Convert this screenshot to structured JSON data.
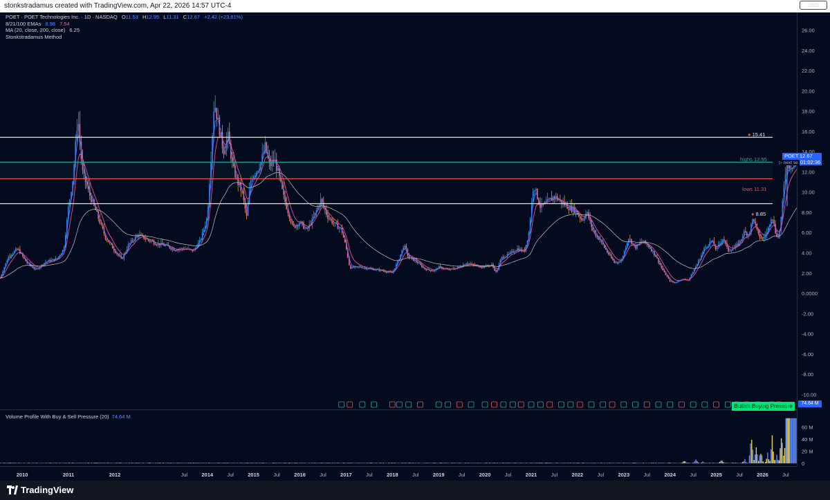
{
  "credit": "stonkstradamus created with TradingView.com, Apr 22, 2026 14:57 UTC-4",
  "legend": {
    "symbol_line": "POET · POET Technologies Inc. · 1D · NASDAQ",
    "o_label": "O",
    "o": "11.53",
    "h_label": "H",
    "h": "12.95",
    "l_label": "L",
    "l": "11.31",
    "c_label": "C",
    "c": "12.67",
    "change": "+2.42 (+23.61%)",
    "ema_label": "8/21/100 EMAs",
    "ema_v1": "8.98",
    "ema_v2": "7.54",
    "ma_label": "MA (20, close, 200, close)",
    "ma_value": "6.25",
    "method": "Stonkstradamus Method"
  },
  "volume_legend": {
    "label": "Volume Profile With Buy & Sell Pressure (20)",
    "value": "74.64 M"
  },
  "currency": "USD",
  "price_tag": {
    "symbol": "POET",
    "price": "12.67",
    "timer": "01:02:36",
    "next_label": "▷ next se"
  },
  "bullish_badge": "Bullish Buying Pressure",
  "vol_max_tag": "74.64 M",
  "level_labels": {
    "top": "15.41",
    "highs_label": "highs",
    "highs_value": "12.95",
    "lows_label": "lows",
    "lows_value": "11.31",
    "white2": "8.85"
  },
  "brand": "TradingView",
  "colors": {
    "background": "#050b1e",
    "highs_line": "#26a69a",
    "lows_line": "#ef5350",
    "level_line": "#e0e3eb",
    "price_tag": "#2962ff",
    "bullish": "#00e676",
    "ema_fast": "#3d7bff",
    "ema_mid": "#ef4f8a",
    "ma_slow": "#c7c7c7"
  },
  "chart_data": {
    "type": "candlestick",
    "symbol": "POET",
    "price_scale": [
      "26.00",
      "24.00",
      "22.00",
      "20.00",
      "18.00",
      "16.00",
      "14.00",
      "12.00",
      "10.00",
      "8.00",
      "6.00",
      "4.00",
      "2.00",
      "0.0000",
      "-2.00",
      "-4.00",
      "-6.00",
      "-8.00",
      "-10.00"
    ],
    "price_range": [
      -11,
      27.2
    ],
    "volume_scale": [
      "60 M",
      "40 M",
      "20 M",
      "0"
    ],
    "volume_range": [
      0,
      80
    ],
    "time_labels": [
      "2010",
      "2011",
      "2012",
      "Jul",
      "2014",
      "Jul",
      "2015",
      "Jul",
      "2016",
      "Jul",
      "2017",
      "Jul",
      "2018",
      "Jul",
      "2019",
      "Jul",
      "2020",
      "Jul",
      "2021",
      "Jul",
      "2022",
      "Jul",
      "2023",
      "Jul",
      "2024",
      "Jul",
      "2025",
      "Jul",
      "2026",
      "Jul"
    ],
    "time_label_dates": [
      2010.0,
      2011.0,
      2012.0,
      2013.5,
      2014.0,
      2014.5,
      2015.0,
      2015.5,
      2016.0,
      2016.5,
      2017.0,
      2017.5,
      2018.0,
      2018.5,
      2019.0,
      2019.5,
      2020.0,
      2020.5,
      2021.0,
      2021.5,
      2022.0,
      2022.5,
      2023.0,
      2023.5,
      2024.0,
      2024.5,
      2025.0,
      2025.5,
      2026.0,
      2026.5
    ],
    "time_range": [
      2009.52,
      2026.74
    ],
    "levels": [
      {
        "name": "top",
        "value": 15.41,
        "color": "#e0e3eb"
      },
      {
        "name": "highs",
        "value": 12.95,
        "color": "#26a69a"
      },
      {
        "name": "lows",
        "value": 11.31,
        "color": "#ef5350"
      },
      {
        "name": "level",
        "value": 8.85,
        "color": "#e0e3eb"
      }
    ],
    "price_path": [
      [
        2009.52,
        1.5
      ],
      [
        2009.7,
        3.6
      ],
      [
        2009.9,
        4.4
      ],
      [
        2010.1,
        3.0
      ],
      [
        2010.3,
        2.3
      ],
      [
        2010.5,
        3.1
      ],
      [
        2010.75,
        3.4
      ],
      [
        2010.9,
        4.4
      ],
      [
        2011.0,
        8.5
      ],
      [
        2011.1,
        11.5
      ],
      [
        2011.2,
        17.5
      ],
      [
        2011.3,
        12.0
      ],
      [
        2011.45,
        9.8
      ],
      [
        2011.6,
        8.0
      ],
      [
        2011.8,
        5.5
      ],
      [
        2012.0,
        4.2
      ],
      [
        2012.15,
        3.3
      ],
      [
        2012.3,
        4.8
      ],
      [
        2012.5,
        5.8
      ],
      [
        2012.7,
        5.3
      ],
      [
        2012.9,
        4.9
      ],
      [
        2013.1,
        4.7
      ],
      [
        2013.3,
        4.3
      ],
      [
        2013.5,
        4.4
      ],
      [
        2013.7,
        4.2
      ],
      [
        2013.85,
        5.2
      ],
      [
        2014.0,
        7.5
      ],
      [
        2014.08,
        13.5
      ],
      [
        2014.15,
        19.0
      ],
      [
        2014.25,
        16.5
      ],
      [
        2014.35,
        14.0
      ],
      [
        2014.45,
        15.5
      ],
      [
        2014.55,
        12.5
      ],
      [
        2014.65,
        11.0
      ],
      [
        2014.75,
        10.0
      ],
      [
        2014.85,
        7.5
      ],
      [
        2014.95,
        11.5
      ],
      [
        2015.05,
        12.0
      ],
      [
        2015.15,
        12.8
      ],
      [
        2015.25,
        14.5
      ],
      [
        2015.35,
        12.5
      ],
      [
        2015.45,
        13.3
      ],
      [
        2015.55,
        11.5
      ],
      [
        2015.65,
        9.5
      ],
      [
        2015.75,
        8.0
      ],
      [
        2015.85,
        6.5
      ],
      [
        2016.0,
        7.0
      ],
      [
        2016.15,
        6.2
      ],
      [
        2016.3,
        7.5
      ],
      [
        2016.45,
        9.2
      ],
      [
        2016.6,
        7.6
      ],
      [
        2016.75,
        6.8
      ],
      [
        2016.9,
        6.3
      ],
      [
        2017.0,
        4.5
      ],
      [
        2017.08,
        2.5
      ],
      [
        2017.3,
        2.6
      ],
      [
        2017.5,
        2.4
      ],
      [
        2017.7,
        2.3
      ],
      [
        2017.9,
        2.1
      ],
      [
        2018.0,
        2.0
      ],
      [
        2018.15,
        3.5
      ],
      [
        2018.25,
        4.8
      ],
      [
        2018.35,
        3.5
      ],
      [
        2018.5,
        3.2
      ],
      [
        2018.7,
        2.4
      ],
      [
        2018.9,
        2.2
      ],
      [
        2019.0,
        2.6
      ],
      [
        2019.2,
        2.3
      ],
      [
        2019.4,
        2.5
      ],
      [
        2019.6,
        3.0
      ],
      [
        2019.8,
        2.7
      ],
      [
        2019.95,
        2.6
      ],
      [
        2020.15,
        2.8
      ],
      [
        2020.25,
        2.0
      ],
      [
        2020.35,
        3.5
      ],
      [
        2020.5,
        3.8
      ],
      [
        2020.7,
        4.4
      ],
      [
        2020.85,
        4.1
      ],
      [
        2020.95,
        6.0
      ],
      [
        2021.05,
        10.8
      ],
      [
        2021.2,
        8.5
      ],
      [
        2021.35,
        9.0
      ],
      [
        2021.5,
        9.6
      ],
      [
        2021.65,
        9.0
      ],
      [
        2021.8,
        8.5
      ],
      [
        2021.95,
        8.2
      ],
      [
        2022.1,
        7.2
      ],
      [
        2022.2,
        8.0
      ],
      [
        2022.35,
        6.0
      ],
      [
        2022.5,
        5.2
      ],
      [
        2022.65,
        4.0
      ],
      [
        2022.8,
        3.0
      ],
      [
        2022.95,
        3.2
      ],
      [
        2023.1,
        5.5
      ],
      [
        2023.25,
        4.5
      ],
      [
        2023.4,
        5.2
      ],
      [
        2023.55,
        4.6
      ],
      [
        2023.7,
        3.6
      ],
      [
        2023.85,
        2.2
      ],
      [
        2024.0,
        1.2
      ],
      [
        2024.1,
        1.0
      ],
      [
        2024.25,
        1.4
      ],
      [
        2024.4,
        1.3
      ],
      [
        2024.55,
        2.6
      ],
      [
        2024.65,
        3.5
      ],
      [
        2024.75,
        4.5
      ],
      [
        2024.9,
        5.2
      ],
      [
        2025.0,
        4.3
      ],
      [
        2025.15,
        5.5
      ],
      [
        2025.25,
        4.2
      ],
      [
        2025.4,
        4.5
      ],
      [
        2025.5,
        5.0
      ],
      [
        2025.6,
        6.0
      ],
      [
        2025.7,
        5.8
      ],
      [
        2025.8,
        7.5
      ],
      [
        2025.9,
        5.8
      ],
      [
        2026.0,
        5.3
      ],
      [
        2026.1,
        6.0
      ],
      [
        2026.2,
        7.8
      ],
      [
        2026.28,
        6.0
      ],
      [
        2026.35,
        5.4
      ],
      [
        2026.42,
        8.2
      ],
      [
        2026.48,
        11.5
      ],
      [
        2026.52,
        12.67
      ]
    ],
    "volume_surge": [
      [
        2024.3,
        6
      ],
      [
        2024.55,
        8
      ],
      [
        2024.7,
        4
      ],
      [
        2025.1,
        7
      ],
      [
        2025.6,
        9
      ],
      [
        2025.75,
        64
      ],
      [
        2025.85,
        42
      ],
      [
        2025.95,
        30
      ],
      [
        2026.1,
        22
      ],
      [
        2026.2,
        48
      ],
      [
        2026.3,
        18
      ],
      [
        2026.4,
        55
      ],
      [
        2026.5,
        74.64
      ]
    ]
  }
}
